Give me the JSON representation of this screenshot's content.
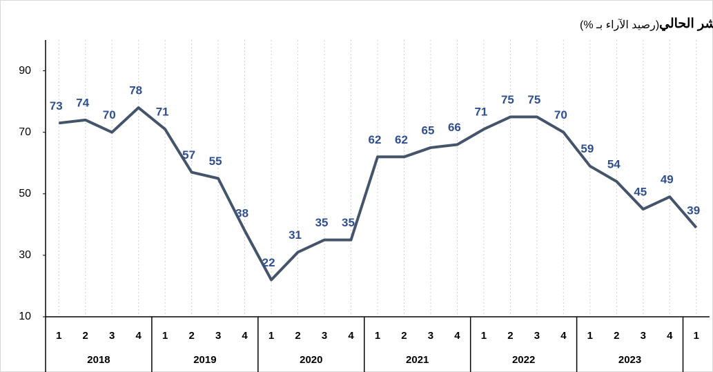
{
  "chart_data": {
    "type": "line",
    "title": "المؤشر الحالي",
    "subtitle": "(رصيد الآراء بـ %)",
    "categories": [
      "1",
      "2",
      "3",
      "4",
      "1",
      "2",
      "3",
      "4",
      "1",
      "2",
      "3",
      "4",
      "1",
      "2",
      "3",
      "4",
      "1",
      "2",
      "3",
      "4",
      "1",
      "2",
      "3",
      "4",
      "1"
    ],
    "year_groups": [
      "2018",
      "2019",
      "2020",
      "2021",
      "2022",
      "2023",
      null
    ],
    "series": [
      {
        "name": null,
        "color": "#44546a",
        "values": [
          73,
          74,
          70,
          78,
          71,
          57,
          55,
          38,
          22,
          31,
          35,
          35,
          62,
          62,
          65,
          66,
          71,
          75,
          75,
          70,
          59,
          54,
          45,
          49,
          39
        ]
      }
    ],
    "ylim": [
      10,
      100
    ],
    "yticks": [
      10,
      30,
      50,
      70,
      90
    ],
    "grid": true
  }
}
